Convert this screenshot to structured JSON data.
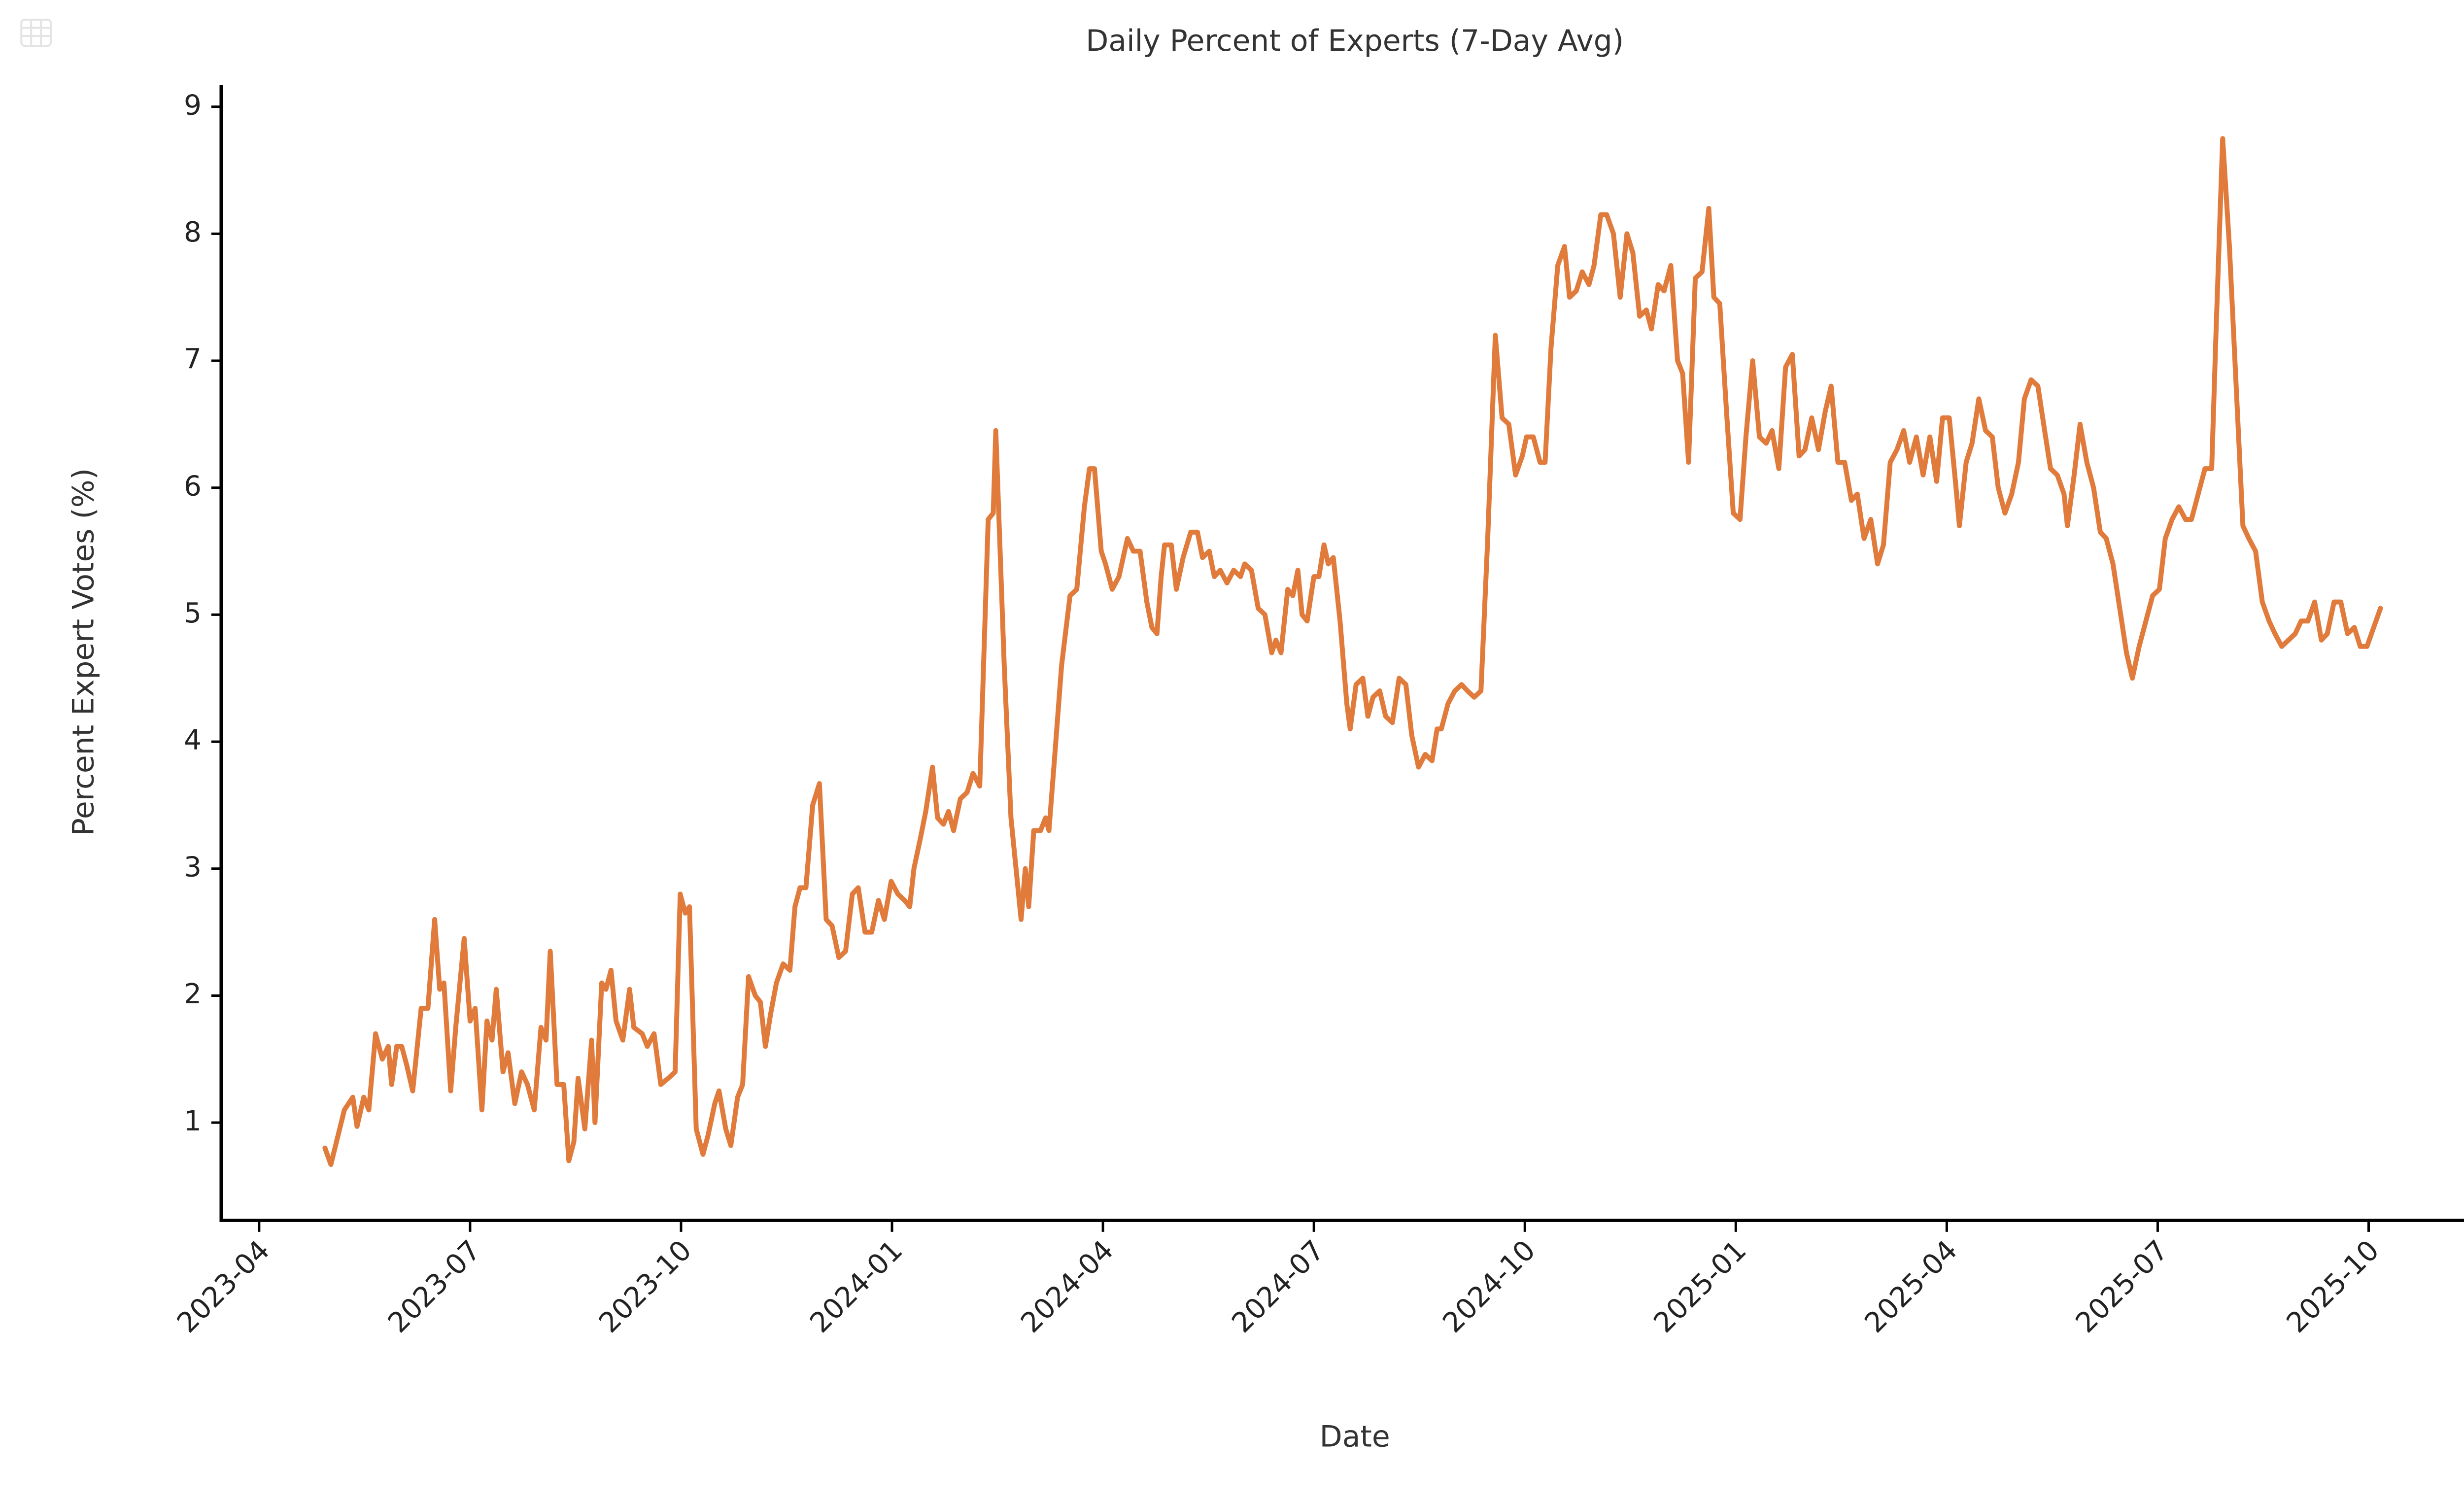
{
  "chart_data": {
    "type": "line",
    "title": "Daily Percent of Experts (7-Day Avg)",
    "x_label": "Date",
    "y_label": "Percent Expert Votes (%)",
    "xlim": [
      2023.205,
      2025.89
    ],
    "ylim": [
      0.23,
      9.17
    ],
    "xticks": [
      {
        "value": 2023.25,
        "label": "2023-04"
      },
      {
        "value": 2023.5,
        "label": "2023-07"
      },
      {
        "value": 2023.75,
        "label": "2023-10"
      },
      {
        "value": 2024.0,
        "label": "2024-01"
      },
      {
        "value": 2024.25,
        "label": "2024-04"
      },
      {
        "value": 2024.5,
        "label": "2024-07"
      },
      {
        "value": 2024.75,
        "label": "2024-10"
      },
      {
        "value": 2025.0,
        "label": "2025-01"
      },
      {
        "value": 2025.25,
        "label": "2025-04"
      },
      {
        "value": 2025.5,
        "label": "2025-07"
      },
      {
        "value": 2025.75,
        "label": "2025-10"
      }
    ],
    "yticks": [
      1,
      2,
      3,
      4,
      5,
      6,
      7,
      8,
      9
    ],
    "grid": false,
    "series": [
      {
        "color": "#e07b3c",
        "x": [
          2023.328,
          2023.335,
          2023.351,
          2023.361,
          2023.366,
          2023.374,
          2023.38,
          2023.388,
          2023.396,
          2023.403,
          2023.407,
          2023.413,
          2023.419,
          2023.425,
          2023.432,
          2023.442,
          2023.45,
          2023.458,
          2023.464,
          2023.469,
          2023.477,
          2023.483,
          2023.493,
          2023.5,
          2023.506,
          2023.514,
          2023.52,
          2023.526,
          2023.531,
          2023.539,
          2023.545,
          2023.553,
          2023.561,
          2023.568,
          2023.576,
          2023.584,
          2023.59,
          2023.595,
          2023.603,
          2023.611,
          2023.617,
          2023.623,
          2023.628,
          2023.636,
          2023.644,
          2023.648,
          2023.656,
          2023.661,
          2023.667,
          2023.673,
          2023.681,
          2023.689,
          2023.694,
          2023.704,
          2023.71,
          2023.718,
          2023.726,
          2023.735,
          2023.743,
          2023.749,
          2023.755,
          2023.76,
          2023.768,
          2023.776,
          2023.782,
          2023.79,
          2023.795,
          2023.803,
          2023.809,
          2023.817,
          2023.823,
          2023.83,
          2023.838,
          2023.844,
          2023.85,
          2023.856,
          2023.863,
          2023.871,
          2023.879,
          2023.885,
          2023.891,
          2023.898,
          2023.906,
          2023.914,
          2023.922,
          2023.929,
          2023.937,
          2023.945,
          2023.953,
          2023.96,
          2023.968,
          2023.976,
          2023.984,
          2023.991,
          2023.999,
          2024.007,
          2024.015,
          2024.021,
          2024.026,
          2024.034,
          2024.04,
          2024.048,
          2024.054,
          2024.061,
          2024.067,
          2024.073,
          2024.081,
          2024.089,
          2024.096,
          2024.104,
          2024.114,
          2024.12,
          2024.123,
          2024.133,
          2024.141,
          2024.147,
          2024.153,
          2024.158,
          2024.162,
          2024.168,
          2024.176,
          2024.182,
          2024.186,
          2024.193,
          2024.201,
          2024.211,
          2024.219,
          2024.228,
          2024.234,
          2024.24,
          2024.248,
          2024.253,
          2024.261,
          2024.269,
          2024.279,
          2024.286,
          2024.294,
          2024.302,
          2024.308,
          2024.314,
          2024.319,
          2024.323,
          2024.331,
          2024.337,
          2024.345,
          2024.354,
          2024.362,
          2024.368,
          2024.376,
          2024.382,
          2024.389,
          2024.397,
          2024.405,
          2024.413,
          2024.418,
          2024.426,
          2024.434,
          2024.442,
          2024.45,
          2024.455,
          2024.461,
          2024.469,
          2024.475,
          2024.481,
          2024.486,
          2024.492,
          2024.5,
          2024.506,
          2024.512,
          2024.517,
          2024.523,
          2024.531,
          2024.539,
          2024.543,
          2024.55,
          2024.558,
          2024.564,
          2024.57,
          2024.578,
          2024.585,
          2024.593,
          2024.601,
          2024.609,
          2024.616,
          2024.624,
          2024.632,
          2024.64,
          2024.646,
          2024.651,
          2024.659,
          2024.667,
          2024.675,
          2024.682,
          2024.69,
          2024.698,
          2024.706,
          2024.715,
          2024.723,
          2024.731,
          2024.739,
          2024.747,
          2024.752,
          2024.76,
          2024.768,
          2024.774,
          2024.781,
          2024.789,
          2024.797,
          2024.803,
          2024.811,
          2024.818,
          2024.826,
          2024.832,
          2024.84,
          2024.847,
          2024.855,
          2024.863,
          2024.871,
          2024.878,
          2024.886,
          2024.894,
          2024.9,
          2024.908,
          2024.915,
          2024.923,
          2024.931,
          2024.937,
          2024.944,
          2024.952,
          2024.96,
          2024.968,
          2024.974,
          2024.981,
          2024.989,
          2024.997,
          2025.005,
          2025.012,
          2025.02,
          2025.028,
          2025.036,
          2025.043,
          2025.051,
          2025.059,
          2025.067,
          2025.075,
          2025.082,
          2025.09,
          2025.098,
          2025.106,
          2025.113,
          2025.121,
          2025.129,
          2025.137,
          2025.144,
          2025.152,
          2025.16,
          2025.168,
          2025.175,
          2025.183,
          2025.191,
          2025.199,
          2025.206,
          2025.214,
          2025.222,
          2025.23,
          2025.238,
          2025.245,
          2025.253,
          2025.261,
          2025.265,
          2025.273,
          2025.28,
          2025.288,
          2025.296,
          2025.304,
          2025.311,
          2025.319,
          2025.327,
          2025.335,
          2025.342,
          2025.35,
          2025.358,
          2025.366,
          2025.373,
          2025.381,
          2025.389,
          2025.393,
          2025.401,
          2025.408,
          2025.416,
          2025.424,
          2025.432,
          2025.439,
          2025.447,
          2025.455,
          2025.463,
          2025.47,
          2025.478,
          2025.486,
          2025.494,
          2025.502,
          2025.509,
          2025.517,
          2025.525,
          2025.533,
          2025.54,
          2025.548,
          2025.556,
          2025.564,
          2025.569,
          2025.577,
          2025.585,
          2025.593,
          2025.601,
          2025.608,
          2025.616,
          2025.624,
          2025.632,
          2025.639,
          2025.647,
          2025.655,
          2025.663,
          2025.67,
          2025.678,
          2025.686,
          2025.694,
          2025.701,
          2025.709,
          2025.717,
          2025.725,
          2025.733,
          2025.74,
          2025.748,
          2025.756,
          2025.764
        ],
        "values": [
          0.8,
          0.67,
          1.1,
          1.2,
          0.97,
          1.2,
          1.1,
          1.7,
          1.5,
          1.6,
          1.3,
          1.6,
          1.6,
          1.45,
          1.25,
          1.9,
          1.9,
          2.6,
          2.05,
          2.1,
          1.25,
          1.75,
          2.45,
          1.8,
          1.9,
          1.1,
          1.8,
          1.65,
          2.05,
          1.4,
          1.55,
          1.15,
          1.4,
          1.3,
          1.1,
          1.75,
          1.65,
          2.35,
          1.3,
          1.3,
          0.7,
          0.85,
          1.35,
          0.95,
          1.65,
          1.0,
          2.1,
          2.05,
          2.2,
          1.8,
          1.65,
          2.05,
          1.75,
          1.7,
          1.6,
          1.7,
          1.3,
          1.35,
          1.4,
          2.8,
          2.65,
          2.7,
          0.95,
          0.75,
          0.9,
          1.15,
          1.25,
          0.95,
          0.82,
          1.2,
          1.3,
          2.15,
          2.0,
          1.95,
          1.6,
          1.85,
          2.1,
          2.25,
          2.2,
          2.7,
          2.85,
          2.85,
          3.5,
          3.67,
          2.6,
          2.55,
          2.3,
          2.35,
          2.8,
          2.85,
          2.5,
          2.5,
          2.75,
          2.6,
          2.9,
          2.8,
          2.75,
          2.7,
          3.0,
          3.25,
          3.45,
          3.8,
          3.4,
          3.35,
          3.45,
          3.3,
          3.55,
          3.6,
          3.75,
          3.65,
          5.75,
          5.8,
          6.45,
          4.6,
          3.4,
          3.0,
          2.6,
          3.0,
          2.7,
          3.3,
          3.3,
          3.4,
          3.3,
          3.9,
          4.6,
          5.15,
          5.2,
          5.85,
          6.15,
          6.15,
          5.5,
          5.4,
          5.2,
          5.3,
          5.6,
          5.5,
          5.5,
          5.1,
          4.9,
          4.85,
          5.3,
          5.55,
          5.55,
          5.2,
          5.45,
          5.65,
          5.65,
          5.45,
          5.5,
          5.3,
          5.35,
          5.25,
          5.35,
          5.3,
          5.4,
          5.35,
          5.05,
          5.0,
          4.7,
          4.8,
          4.7,
          5.2,
          5.15,
          5.35,
          5.0,
          4.95,
          5.3,
          5.3,
          5.55,
          5.4,
          5.45,
          4.95,
          4.3,
          4.1,
          4.45,
          4.5,
          4.2,
          4.35,
          4.4,
          4.2,
          4.15,
          4.5,
          4.45,
          4.05,
          3.8,
          3.9,
          3.85,
          4.1,
          4.1,
          4.3,
          4.4,
          4.45,
          4.4,
          4.35,
          4.4,
          5.6,
          7.2,
          6.55,
          6.5,
          6.1,
          6.25,
          6.4,
          6.4,
          6.2,
          6.2,
          7.1,
          7.75,
          7.9,
          7.5,
          7.55,
          7.7,
          7.6,
          7.75,
          8.15,
          8.15,
          8.0,
          7.5,
          8.0,
          7.85,
          7.35,
          7.4,
          7.25,
          7.6,
          7.55,
          7.75,
          7.0,
          6.9,
          6.2,
          7.65,
          7.7,
          8.2,
          7.5,
          7.45,
          6.6,
          5.8,
          5.75,
          6.4,
          7.0,
          6.4,
          6.35,
          6.45,
          6.15,
          6.95,
          7.05,
          6.25,
          6.3,
          6.55,
          6.3,
          6.6,
          6.8,
          6.2,
          6.2,
          5.9,
          5.95,
          5.6,
          5.75,
          5.4,
          5.55,
          6.2,
          6.3,
          6.45,
          6.2,
          6.4,
          6.1,
          6.4,
          6.05,
          6.55,
          6.55,
          6.0,
          5.7,
          6.2,
          6.35,
          6.7,
          6.45,
          6.4,
          6.0,
          5.8,
          5.95,
          6.2,
          6.7,
          6.85,
          6.8,
          6.45,
          6.15,
          6.1,
          5.95,
          5.7,
          6.1,
          6.5,
          6.2,
          6.0,
          5.65,
          5.6,
          5.4,
          5.05,
          4.7,
          4.5,
          4.75,
          4.95,
          5.15,
          5.2,
          5.6,
          5.75,
          5.85,
          5.75,
          5.75,
          5.95,
          6.15,
          6.15,
          7.2,
          8.75,
          7.9,
          6.8,
          5.7,
          5.6,
          5.5,
          5.1,
          4.95,
          4.85,
          4.75,
          4.8,
          4.85,
          4.95,
          4.95,
          5.1,
          4.8,
          4.85,
          5.1,
          5.1,
          4.85,
          4.9,
          4.75,
          4.75,
          4.9,
          5.05
        ]
      }
    ]
  }
}
